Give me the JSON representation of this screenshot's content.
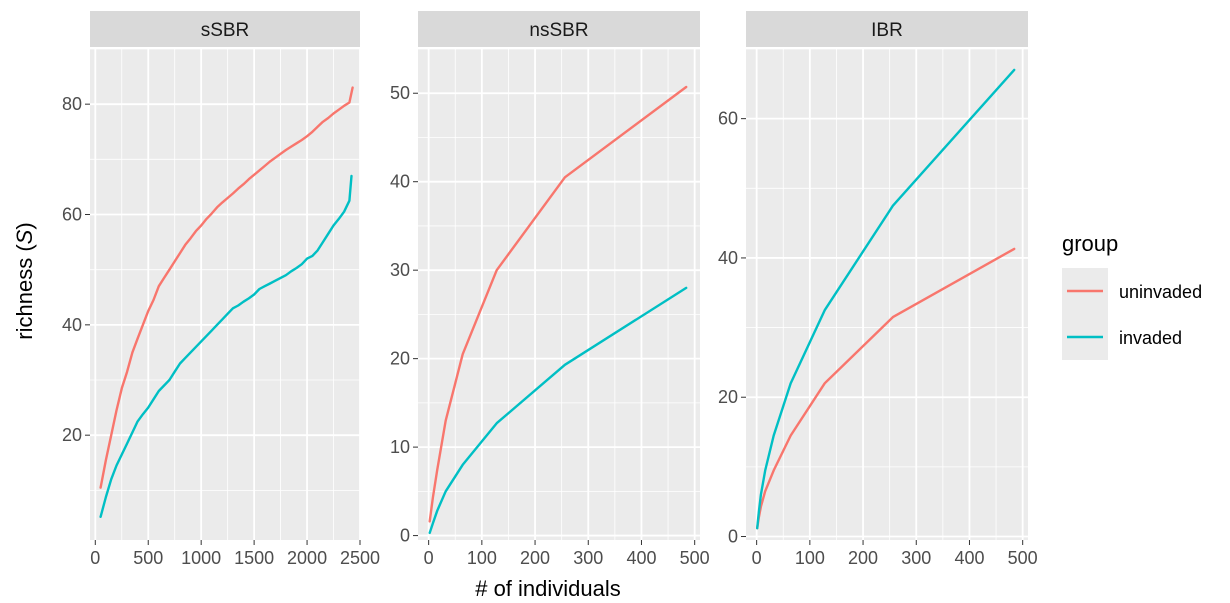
{
  "chart_data": {
    "type": "line",
    "xlabel": "# of individuals",
    "ylabel_prefix": "richness (",
    "ylabel_symbol": "S",
    "ylabel_suffix": ")",
    "legend": {
      "title": "group",
      "placement": "right",
      "entries": [
        {
          "name": "uninvaded",
          "color": "#F8766D"
        },
        {
          "name": "invaded",
          "color": "#00BFC4"
        }
      ]
    },
    "grid": true,
    "panels": [
      {
        "title": "sSBR",
        "xlim": [
          -50,
          2500
        ],
        "ylim": [
          1,
          90
        ],
        "xticks": [
          0,
          500,
          1000,
          1500,
          2000,
          2500
        ],
        "yticks": [
          20,
          40,
          60,
          80
        ],
        "series": [
          {
            "name": "uninvaded",
            "color": "#F8766D",
            "x": [
              50,
              100,
              150,
              200,
              250,
              300,
              350,
              400,
              450,
              500,
              550,
              600,
              650,
              700,
              750,
              800,
              850,
              900,
              950,
              1000,
              1050,
              1100,
              1150,
              1200,
              1250,
              1300,
              1350,
              1400,
              1450,
              1500,
              1550,
              1600,
              1650,
              1700,
              1750,
              1800,
              1850,
              1900,
              1950,
              2000,
              2050,
              2100,
              2150,
              2200,
              2250,
              2300,
              2350,
              2400,
              2430
            ],
            "y": [
              10.5,
              15.5,
              20,
              24.5,
              28.5,
              31.5,
              35,
              37.5,
              40,
              42.5,
              44.5,
              47,
              48.5,
              50,
              51.5,
              53,
              54.5,
              55.7,
              57,
              58,
              59.2,
              60.2,
              61.3,
              62.2,
              63,
              63.8,
              64.7,
              65.5,
              66.4,
              67.2,
              68,
              68.8,
              69.6,
              70.3,
              71,
              71.7,
              72.3,
              72.9,
              73.5,
              74.2,
              75,
              75.9,
              76.8,
              77.5,
              78.3,
              79,
              79.7,
              80.3,
              83
            ]
          },
          {
            "name": "invaded",
            "color": "#00BFC4",
            "x": [
              50,
              100,
              150,
              200,
              250,
              300,
              350,
              400,
              450,
              500,
              550,
              600,
              650,
              700,
              750,
              800,
              850,
              900,
              950,
              1000,
              1050,
              1100,
              1150,
              1200,
              1250,
              1300,
              1350,
              1400,
              1450,
              1500,
              1550,
              1600,
              1650,
              1700,
              1750,
              1800,
              1850,
              1900,
              1950,
              2000,
              2050,
              2100,
              2150,
              2200,
              2250,
              2300,
              2350,
              2400,
              2420
            ],
            "y": [
              5.2,
              8.8,
              12,
              14.5,
              16.5,
              18.5,
              20.5,
              22.5,
              23.8,
              25,
              26.5,
              28,
              29,
              30,
              31.5,
              33,
              34,
              35,
              36,
              37,
              38,
              39,
              40,
              41,
              42,
              43,
              43.5,
              44.2,
              44.8,
              45.5,
              46.5,
              47,
              47.5,
              48,
              48.5,
              49,
              49.7,
              50.3,
              51,
              52,
              52.5,
              53.5,
              55,
              56.5,
              58,
              59.2,
              60.5,
              62.5,
              67
            ]
          }
        ]
      },
      {
        "title": "nsSBR",
        "xlim": [
          -20,
          510
        ],
        "ylim": [
          -0.5,
          55
        ],
        "xticks": [
          0,
          100,
          200,
          300,
          400,
          500
        ],
        "yticks": [
          0,
          10,
          20,
          30,
          40,
          50
        ],
        "series": [
          {
            "name": "uninvaded",
            "color": "#F8766D",
            "x": [
              2,
              8,
              16,
              32,
              64,
              128,
              256,
              484
            ],
            "y": [
              1.6,
              4.3,
              7.4,
              13,
              20.5,
              30,
              40.5,
              50.7
            ]
          },
          {
            "name": "invaded",
            "color": "#00BFC4",
            "x": [
              2,
              8,
              16,
              32,
              64,
              128,
              256,
              484
            ],
            "y": [
              0.3,
              1.4,
              2.8,
              5,
              8,
              12.7,
              19.3,
              28
            ]
          }
        ]
      },
      {
        "title": "IBR",
        "xlim": [
          -20,
          510
        ],
        "ylim": [
          -0.5,
          70
        ],
        "xticks": [
          0,
          100,
          200,
          300,
          400,
          500
        ],
        "yticks": [
          0,
          20,
          40,
          60
        ],
        "series": [
          {
            "name": "uninvaded",
            "color": "#F8766D",
            "x": [
              1,
              4,
              8,
              16,
              32,
              64,
              128,
              256,
              484
            ],
            "y": [
              1.2,
              2.7,
              4.3,
              6.5,
              9.5,
              14.5,
              22,
              31.5,
              41.3
            ]
          },
          {
            "name": "invaded",
            "color": "#00BFC4",
            "x": [
              1,
              4,
              8,
              16,
              32,
              64,
              128,
              256,
              484
            ],
            "y": [
              1.2,
              3.5,
              6,
              9.5,
              14.5,
              22,
              32.5,
              47.5,
              67
            ]
          }
        ]
      }
    ]
  }
}
